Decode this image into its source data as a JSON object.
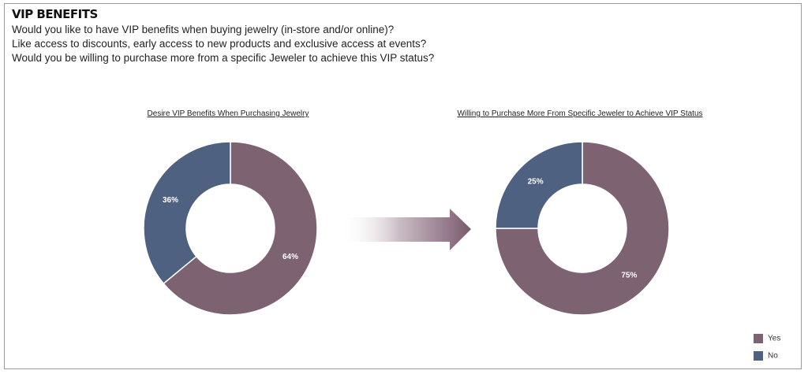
{
  "header": {
    "title": "VIP BENEFITS",
    "question_lines": [
      "Would you like to have VIP benefits when buying jewelry (in-store and/or online)?",
      "Like access to discounts, early access to new products and exclusive access at events?",
      "Would you be willing to purchase more from a specific Jeweler to achieve this VIP status?"
    ]
  },
  "colors": {
    "yes": "#7d6272",
    "no": "#4e6180",
    "arrow": "#7a5a6e"
  },
  "legend": [
    {
      "label": "Yes",
      "color": "#7d6272"
    },
    {
      "label": "No",
      "color": "#4e6180"
    }
  ],
  "chart_data": [
    {
      "type": "pie",
      "title": "Desire VIP Benefits When Purchasing Jewelry",
      "categories": [
        "Yes",
        "No"
      ],
      "values": [
        64,
        36
      ],
      "labels": [
        "64%",
        "36%"
      ]
    },
    {
      "type": "pie",
      "title": "Willing to Purchase More From Specific Jeweler to Achieve VIP Status",
      "categories": [
        "Yes",
        "No"
      ],
      "values": [
        75,
        25
      ],
      "labels": [
        "75%",
        "25%"
      ]
    }
  ]
}
